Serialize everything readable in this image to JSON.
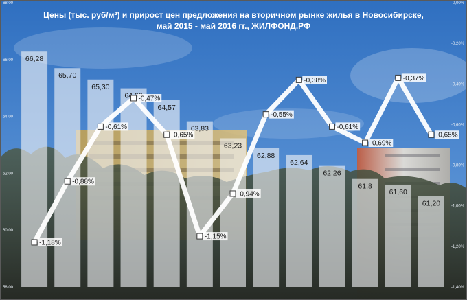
{
  "chart_data": {
    "type": "bar",
    "title": "Цены (тыс. руб/м²) и прирост цен предложения на вторичном рынке жилья в Новосибирске,",
    "subtitle": "май 2015 - май 2016 гг., ЖИЛФОНД.РФ",
    "categories": [
      "",
      "",
      "",
      "",
      "",
      "",
      "",
      "",
      "",
      "",
      "",
      "",
      ""
    ],
    "series": [
      {
        "type": "bar",
        "values": [
          66.28,
          65.7,
          65.3,
          64.99,
          64.57,
          63.83,
          63.23,
          62.88,
          62.64,
          62.26,
          61.8,
          61.6,
          61.2
        ],
        "labels": [
          "66,28",
          "65,70",
          "65,30",
          "64,99",
          "64,57",
          "63,83",
          "63,23",
          "62,88",
          "62,64",
          "62,26",
          "61,8",
          "61,60",
          "61,20"
        ]
      },
      {
        "type": "line",
        "values": [
          -1.18,
          -0.88,
          -0.61,
          -0.47,
          -0.65,
          -1.15,
          -0.94,
          -0.55,
          -0.38,
          -0.61,
          -0.69,
          -0.37,
          -0.65
        ],
        "labels": [
          "-1,18%",
          "-0,88%",
          "-0,61%",
          "-0,47%",
          "-0,65%",
          "-1,15%",
          "-0,94%",
          "-0,55%",
          "-0,38%",
          "-0,61%",
          "-0,69%",
          "-0,37%",
          "-0,65%"
        ]
      }
    ],
    "left_axis": {
      "ylim": [
        58,
        68
      ],
      "ticks": [
        "68,00",
        "66,00",
        "64,00",
        "62,00",
        "60,00",
        "58,00"
      ]
    },
    "right_axis": {
      "ylim": [
        -1.4,
        0
      ],
      "ticks": [
        "0,00%",
        "-0,20%",
        "-0,40%",
        "-0,60%",
        "-0,80%",
        "-1,00%",
        "-1,20%",
        "-1,40%"
      ]
    },
    "grid": false,
    "legend": "none"
  },
  "colors": {
    "sky_top": "#2f6fc0",
    "sky_bottom": "#6ea3df",
    "bar_fill": "#f2f4f7",
    "line": "#ffffff",
    "marker_border": "#3a3a3a",
    "frame": "#5a5a5a"
  }
}
